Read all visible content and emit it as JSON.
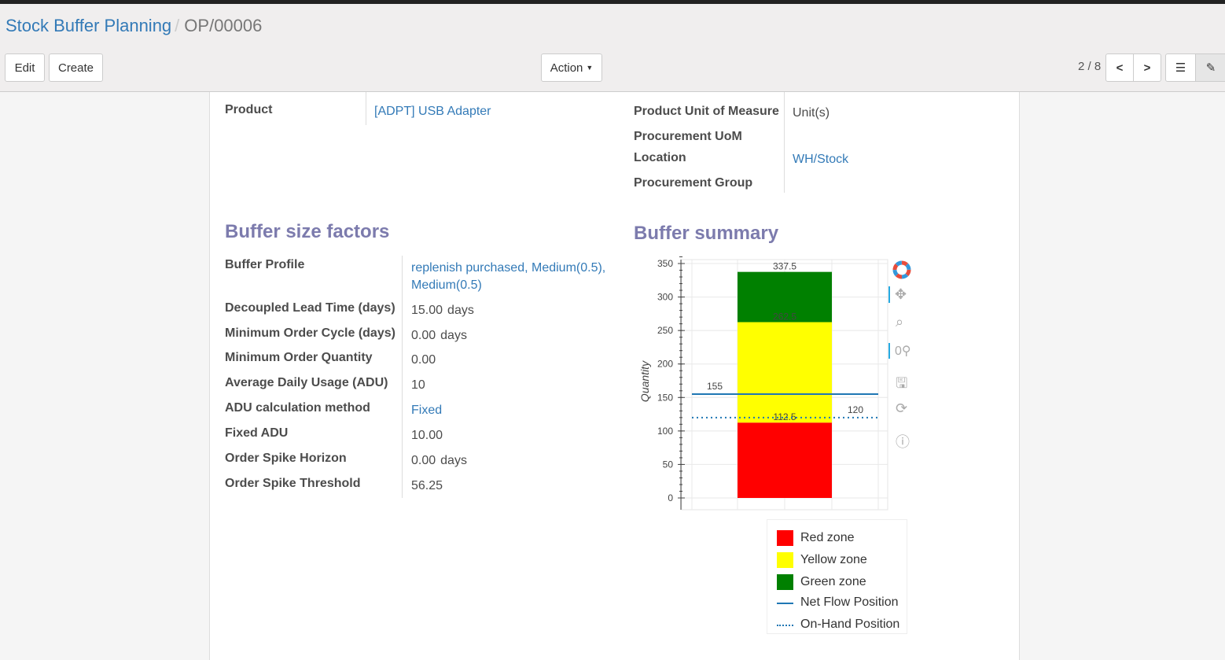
{
  "breadcrumb": {
    "parent": "Stock Buffer Planning",
    "current": "OP/00006"
  },
  "buttons": {
    "edit": "Edit",
    "create": "Create",
    "action": "Action"
  },
  "pager": {
    "text": "2 / 8"
  },
  "fields_top": {
    "product_label": "Product",
    "product_value": "[ADPT] USB Adapter",
    "uom_label": "Product Unit of Measure",
    "uom_value": "Unit(s)",
    "proc_uom_label": "Procurement UoM",
    "location_label": "Location",
    "location_value": "WH/Stock",
    "proc_group_label": "Procurement Group"
  },
  "factors": {
    "title": "Buffer size factors",
    "rows": [
      {
        "label": "Buffer Profile",
        "value": "replenish purchased, Medium(0.5), Medium(0.5)",
        "link": true
      },
      {
        "label": "Decoupled Lead Time (days)",
        "value": "15.00",
        "unit": "days"
      },
      {
        "label": "Minimum Order Cycle (days)",
        "value": "0.00",
        "unit": "days"
      },
      {
        "label": "Minimum Order Quantity",
        "value": "0.00"
      },
      {
        "label": "Average Daily Usage (ADU)",
        "value": "10"
      },
      {
        "label": "ADU calculation method",
        "value": "Fixed",
        "link": true
      },
      {
        "label": "Fixed ADU",
        "value": "10.00"
      },
      {
        "label": "Order Spike Horizon",
        "value": "0.00",
        "unit": "days"
      },
      {
        "label": "Order Spike Threshold",
        "value": "56.25"
      }
    ]
  },
  "summary": {
    "title": "Buffer summary"
  },
  "chart_data": {
    "type": "bar",
    "stacked": true,
    "ylabel": "Quantity",
    "ylim": [
      0,
      350
    ],
    "yticks": [
      0,
      50,
      100,
      150,
      200,
      250,
      300,
      350
    ],
    "grid": true,
    "series": [
      {
        "name": "Red zone",
        "from": 0,
        "to": 112.5,
        "color": "#ff0000",
        "label": "112.5"
      },
      {
        "name": "Yellow zone",
        "from": 112.5,
        "to": 262.5,
        "color": "#ffff00",
        "label": "262.5"
      },
      {
        "name": "Green zone",
        "from": 262.5,
        "to": 337.5,
        "color": "#008000",
        "label": "337.5"
      }
    ],
    "lines": [
      {
        "name": "Net Flow Position",
        "value": 155,
        "style": "solid",
        "color": "#1f77b4",
        "label": "155"
      },
      {
        "name": "On-Hand Position",
        "value": 120,
        "style": "dotted",
        "color": "#1f77b4",
        "label": "120"
      }
    ],
    "legend": "bottom"
  }
}
